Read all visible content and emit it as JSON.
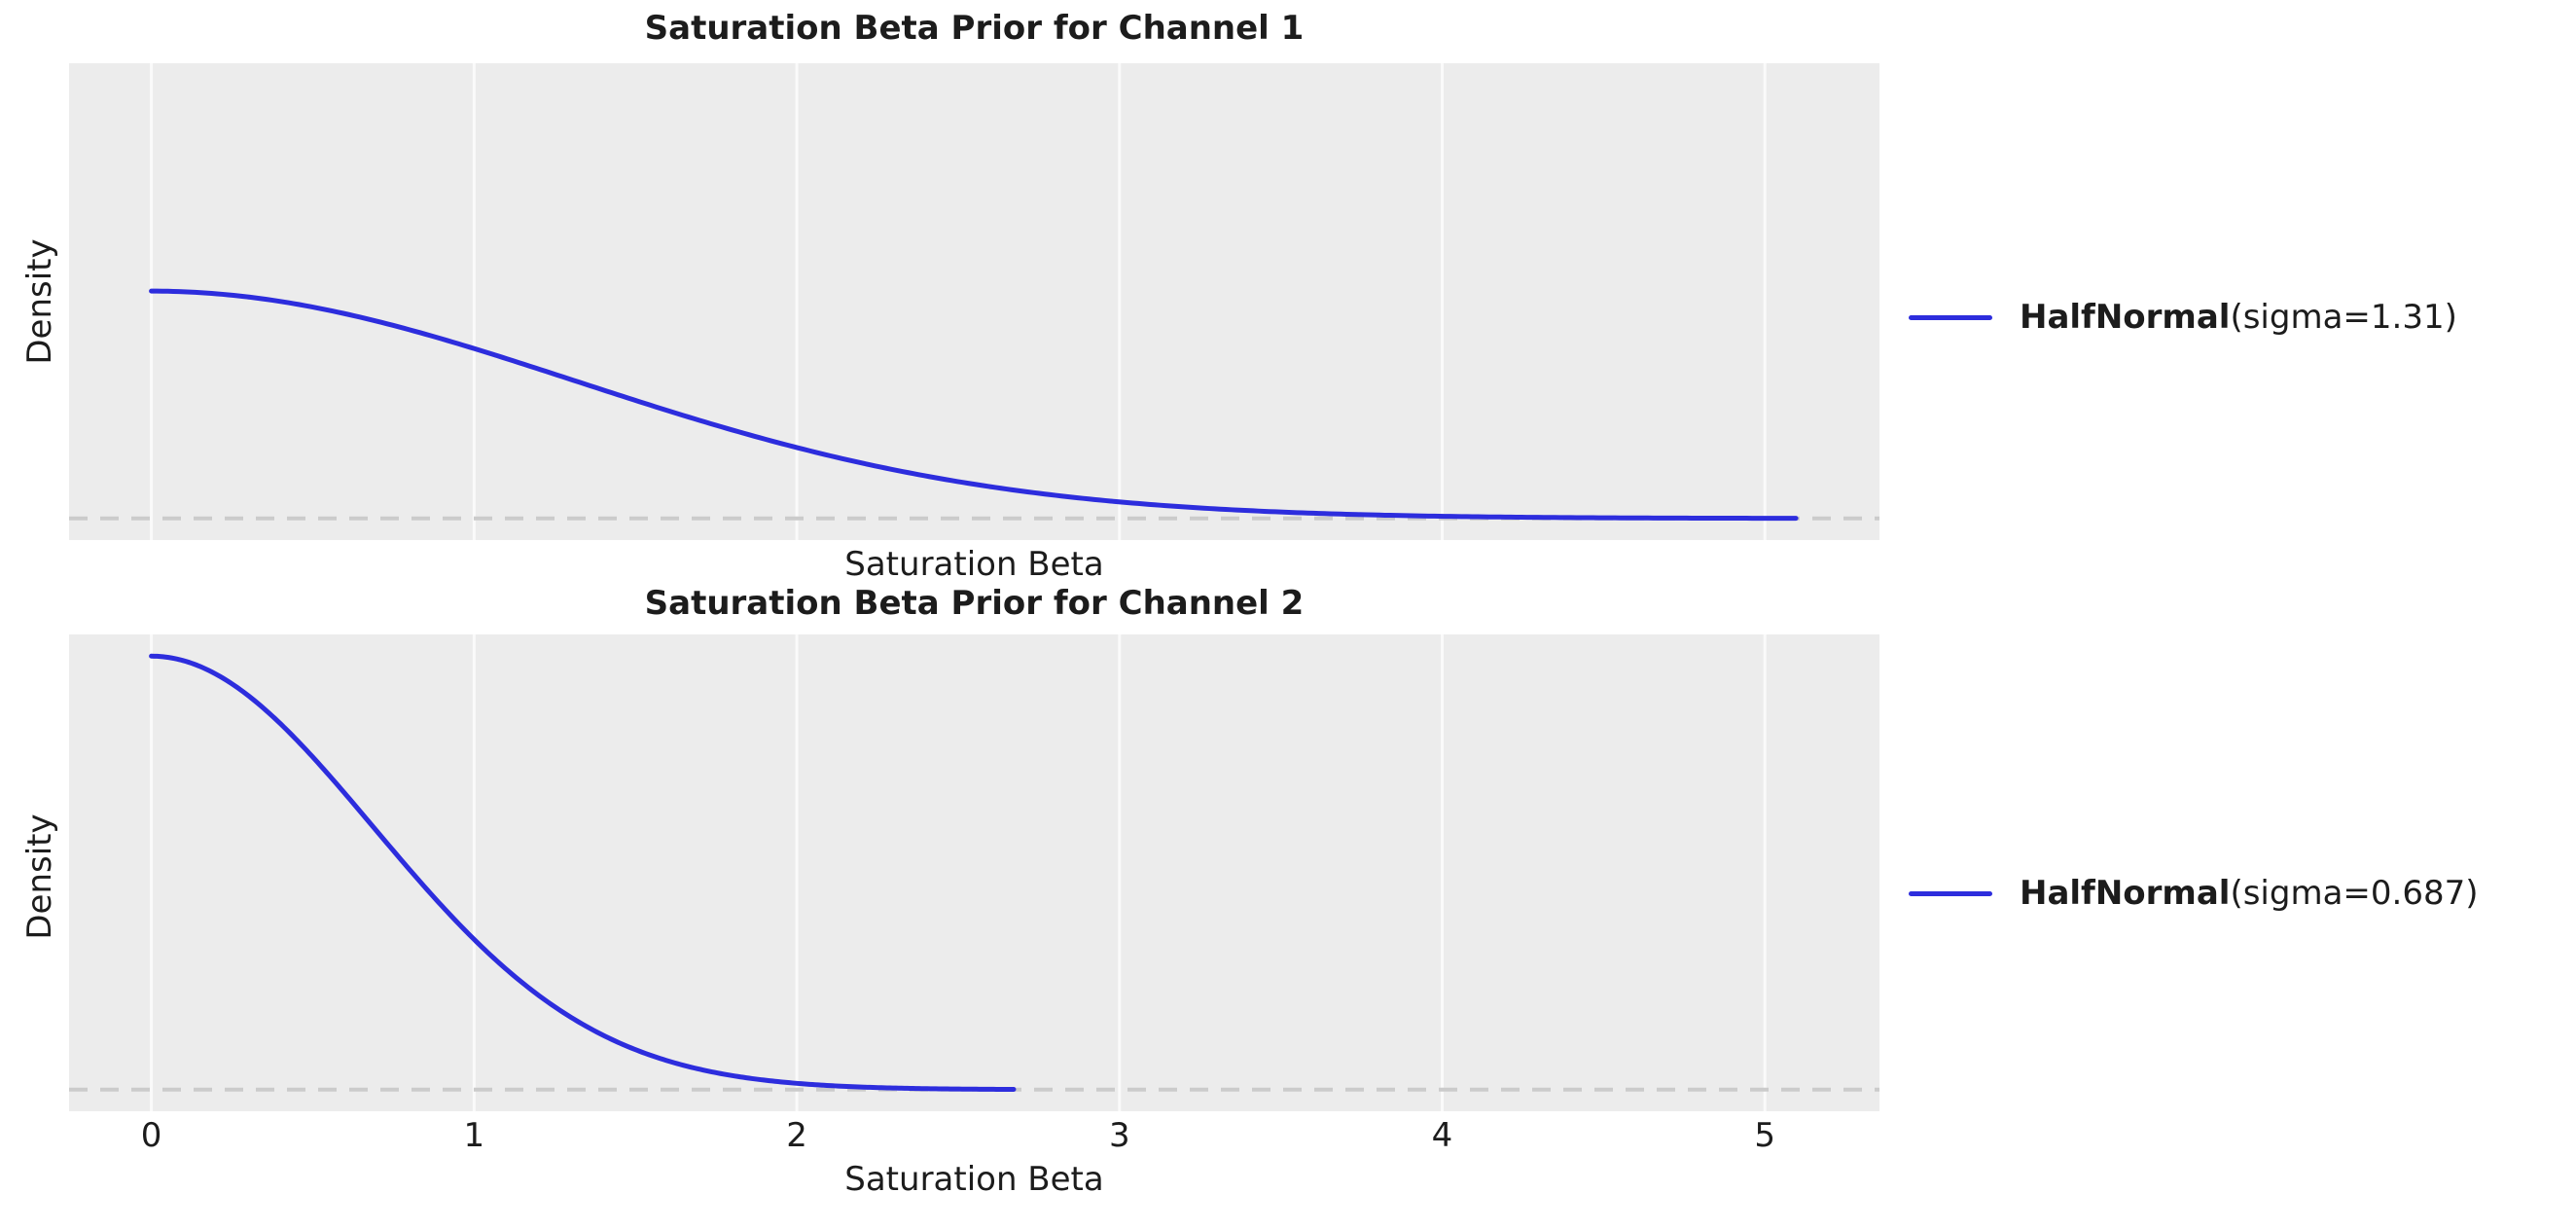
{
  "figure": {
    "background": "#ffffff",
    "text_color": "#1c1c1c"
  },
  "colors": {
    "curve": "#2d2ddd",
    "plot_background": "#ececec",
    "gridline": "#fafafa",
    "zero_line": "#cbcbcb"
  },
  "chart_data": [
    {
      "type": "line",
      "title": "Saturation Beta Prior for Channel 1",
      "xlabel": "Saturation Beta",
      "ylabel": "Density",
      "xlim": [
        -0.255,
        5.355
      ],
      "ylim": [
        -0.058,
        1.2195
      ],
      "x_ticks": [
        0,
        1,
        2,
        3,
        4,
        5
      ],
      "x_tick_labels_visible": false,
      "grid": "vertical gridlines only",
      "legend": {
        "dist_name": "HalfNormal",
        "params": "(sigma=1.31)",
        "position": "outside center-right"
      },
      "reference_line": {
        "y": 0,
        "style": "dashed"
      },
      "series": [
        {
          "name": "HalfNormal(sigma=1.31)",
          "distribution": "HalfNormal",
          "sigma": 1.31,
          "x_range": [
            0,
            5.096
          ],
          "peak_density": 0.609,
          "points": [
            [
              0.0,
              0.609
            ],
            [
              0.5,
              0.566
            ],
            [
              1.0,
              0.455
            ],
            [
              1.5,
              0.316
            ],
            [
              2.0,
              0.19
            ],
            [
              2.5,
              0.099
            ],
            [
              3.0,
              0.044
            ],
            [
              3.5,
              0.017
            ],
            [
              4.0,
              0.006
            ],
            [
              4.5,
              0.002
            ],
            [
              5.0,
              0.0004
            ],
            [
              5.096,
              0.0003
            ]
          ]
        }
      ]
    },
    {
      "type": "line",
      "title": "Saturation Beta Prior for Channel 2",
      "xlabel": "Saturation Beta",
      "ylabel": "Density",
      "xlim": [
        -0.255,
        5.355
      ],
      "ylim": [
        -0.058,
        1.2195
      ],
      "x_ticks": [
        0,
        1,
        2,
        3,
        4,
        5
      ],
      "x_tick_labels_visible": true,
      "grid": "vertical gridlines only",
      "legend": {
        "dist_name": "HalfNormal",
        "params": "(sigma=0.687)",
        "position": "outside center-right"
      },
      "reference_line": {
        "y": 0,
        "style": "dashed"
      },
      "series": [
        {
          "name": "HalfNormal(sigma=0.687)",
          "distribution": "HalfNormal",
          "sigma": 0.687,
          "x_range": [
            0,
            2.672
          ],
          "peak_density": 1.161,
          "points": [
            [
              0.0,
              1.161
            ],
            [
              0.25,
              1.087
            ],
            [
              0.5,
              0.891
            ],
            [
              0.75,
              0.64
            ],
            [
              1.0,
              0.403
            ],
            [
              1.25,
              0.222
            ],
            [
              1.5,
              0.107
            ],
            [
              1.75,
              0.045
            ],
            [
              2.0,
              0.017
            ],
            [
              2.25,
              0.005
            ],
            [
              2.5,
              0.002
            ],
            [
              2.672,
              0.0006
            ]
          ]
        }
      ]
    }
  ]
}
